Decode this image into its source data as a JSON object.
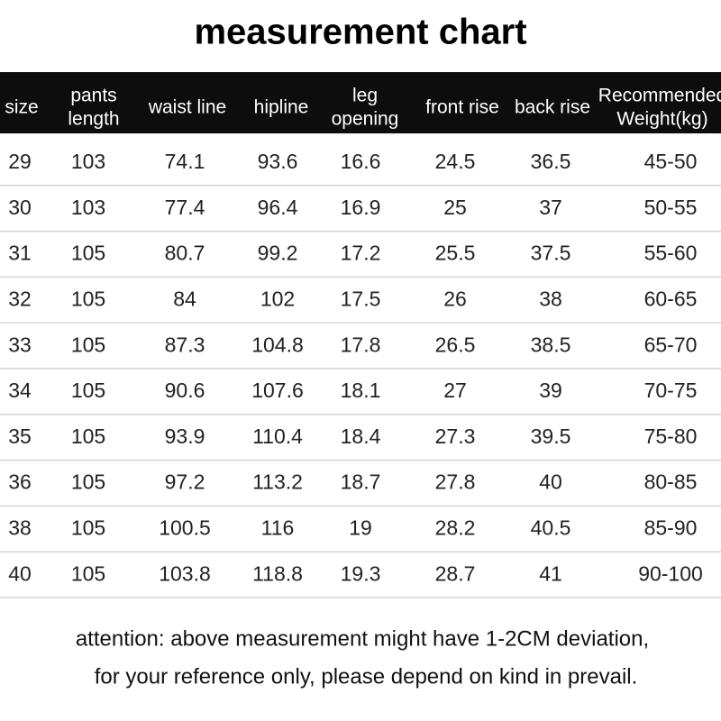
{
  "header": {
    "title": "measurement chart"
  },
  "table": {
    "columns": [
      [
        "size"
      ],
      [
        "pants",
        "length"
      ],
      [
        "waist line"
      ],
      [
        "hipline"
      ],
      [
        "leg",
        "opening"
      ],
      [
        "front rise"
      ],
      [
        "back rise"
      ],
      [
        "Recommended",
        "Weight(kg)"
      ]
    ],
    "rows": [
      [
        "29",
        "103",
        "74.1",
        "93.6",
        "16.6",
        "24.5",
        "36.5",
        "45-50"
      ],
      [
        "30",
        "103",
        "77.4",
        "96.4",
        "16.9",
        "25",
        "37",
        "50-55"
      ],
      [
        "31",
        "105",
        "80.7",
        "99.2",
        "17.2",
        "25.5",
        "37.5",
        "55-60"
      ],
      [
        "32",
        "105",
        "84",
        "102",
        "17.5",
        "26",
        "38",
        "60-65"
      ],
      [
        "33",
        "105",
        "87.3",
        "104.8",
        "17.8",
        "26.5",
        "38.5",
        "65-70"
      ],
      [
        "34",
        "105",
        "90.6",
        "107.6",
        "18.1",
        "27",
        "39",
        "70-75"
      ],
      [
        "35",
        "105",
        "93.9",
        "110.4",
        "18.4",
        "27.3",
        "39.5",
        "75-80"
      ],
      [
        "36",
        "105",
        "97.2",
        "113.2",
        "18.7",
        "27.8",
        "40",
        "80-85"
      ],
      [
        "38",
        "105",
        "100.5",
        "116",
        "19",
        "28.2",
        "40.5",
        "85-90"
      ],
      [
        "40",
        "105",
        "103.8",
        "118.8",
        "19.3",
        "28.7",
        "41",
        "90-100"
      ]
    ]
  },
  "notes": [
    "attention: above measurement might have 1-2CM deviation,",
    "for your reference only, please depend on kind in prevail."
  ]
}
